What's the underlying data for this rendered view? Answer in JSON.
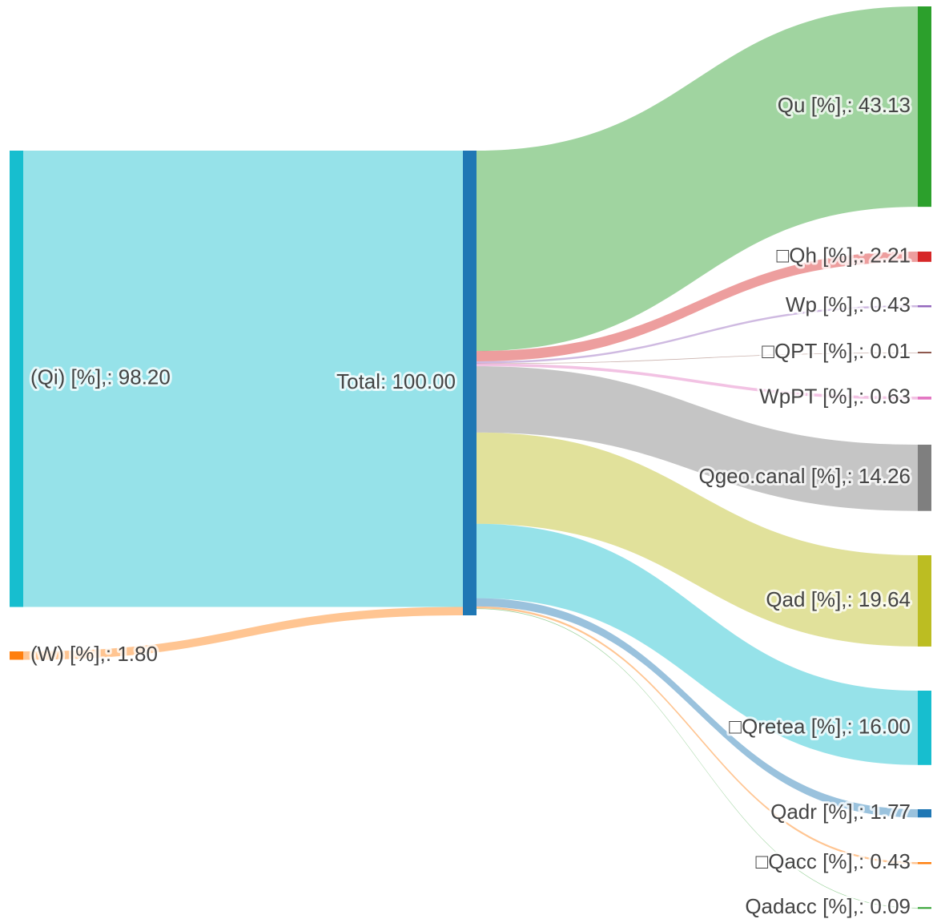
{
  "chart_data": {
    "type": "sankey",
    "nodes": [
      {
        "label": "(Qi) [%],: 98.20",
        "value": 98.2,
        "color": "#17becf"
      },
      {
        "label": "(W) [%],: 1.80",
        "value": 1.8,
        "color": "#ff7f0e"
      },
      {
        "label": "Total: 100.00",
        "value": 100.0,
        "color": "#1f77b4"
      },
      {
        "label": "Qu [%],: 43.13",
        "value": 43.13,
        "color": "#2ca02c"
      },
      {
        "label": "□Qh [%],: 2.21",
        "value": 2.21,
        "color": "#d62728"
      },
      {
        "label": "Wp [%],: 0.43",
        "value": 0.43,
        "color": "#9467bd"
      },
      {
        "label": "□QPT [%],: 0.01",
        "value": 0.01,
        "color": "#8c564b"
      },
      {
        "label": "WpPT [%],: 0.63",
        "value": 0.63,
        "color": "#e377c2"
      },
      {
        "label": "Qgeo.canal [%],: 14.26",
        "value": 14.26,
        "color": "#7f7f7f"
      },
      {
        "label": "Qad [%],: 19.64",
        "value": 19.64,
        "color": "#bcbd22"
      },
      {
        "label": "□Qretea [%],: 16.00",
        "value": 16.0,
        "color": "#17becf"
      },
      {
        "label": "Qadr [%],: 1.77",
        "value": 1.77,
        "color": "#1f77b4"
      },
      {
        "label": "□Qacc [%],: 0.43",
        "value": 0.43,
        "color": "#ff7f0e"
      },
      {
        "label": "Qadacc [%],: 0.09",
        "value": 0.09,
        "color": "#2ca02c"
      }
    ],
    "links": [
      {
        "source": 0,
        "target": 2,
        "value": 98.2,
        "color": "rgba(23,190,207,0.45)"
      },
      {
        "source": 1,
        "target": 2,
        "value": 1.8,
        "color": "rgba(255,127,14,0.45)"
      },
      {
        "source": 2,
        "target": 3,
        "value": 43.13,
        "color": "rgba(44,160,44,0.45)"
      },
      {
        "source": 2,
        "target": 4,
        "value": 2.21,
        "color": "rgba(214,39,40,0.45)"
      },
      {
        "source": 2,
        "target": 5,
        "value": 0.43,
        "color": "rgba(148,103,189,0.45)"
      },
      {
        "source": 2,
        "target": 6,
        "value": 0.01,
        "color": "rgba(140,86,75,0.45)"
      },
      {
        "source": 2,
        "target": 7,
        "value": 0.63,
        "color": "rgba(227,119,194,0.45)"
      },
      {
        "source": 2,
        "target": 8,
        "value": 14.26,
        "color": "rgba(127,127,127,0.45)"
      },
      {
        "source": 2,
        "target": 9,
        "value": 19.64,
        "color": "rgba(188,189,34,0.45)"
      },
      {
        "source": 2,
        "target": 10,
        "value": 16.0,
        "color": "rgba(23,190,207,0.45)"
      },
      {
        "source": 2,
        "target": 11,
        "value": 1.77,
        "color": "rgba(31,119,180,0.45)"
      },
      {
        "source": 2,
        "target": 12,
        "value": 0.43,
        "color": "rgba(255,127,14,0.45)"
      },
      {
        "source": 2,
        "target": 13,
        "value": 0.09,
        "color": "rgba(44,160,44,0.45)"
      }
    ]
  }
}
